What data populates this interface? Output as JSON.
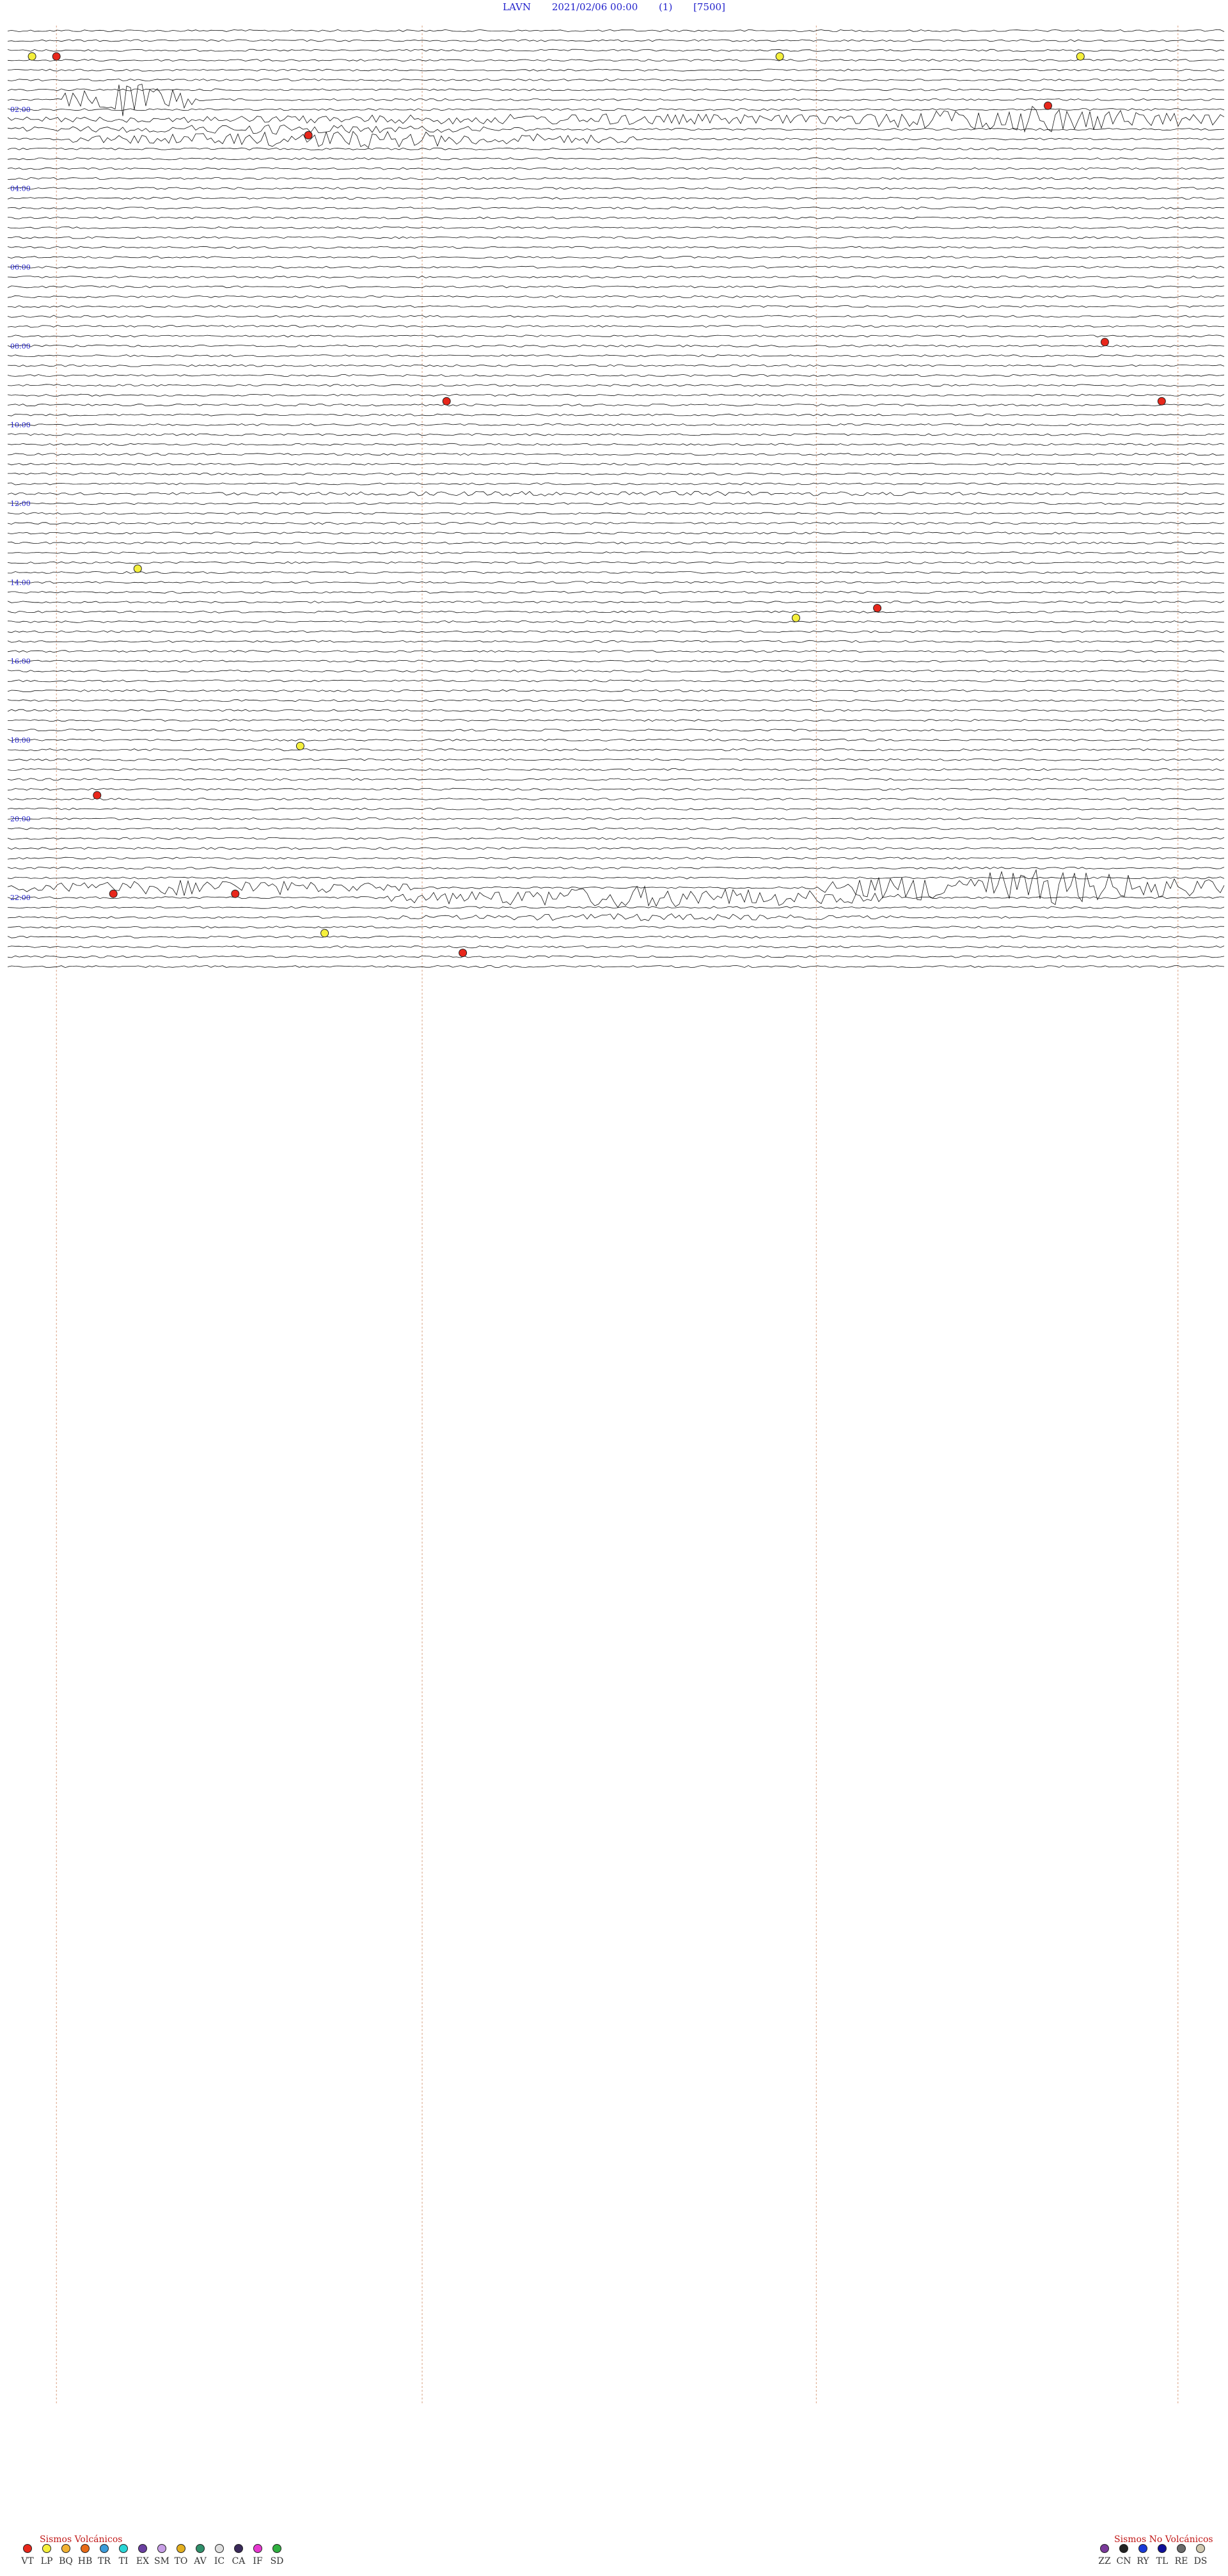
{
  "header": {
    "station": "LAVN",
    "datetime": "2021/02/06 00:00",
    "channel": "(1)",
    "scale": "[7500]"
  },
  "time_labels": [
    "02:00",
    "04:00",
    "06:00",
    "08:00",
    "10:00",
    "12:00",
    "14:00",
    "16:00",
    "18:00",
    "20:00",
    "22:00"
  ],
  "legend": {
    "volcanic_title": "Sismos Volcánicos",
    "volcanic": [
      {
        "code": "VT",
        "color": "#e8271b"
      },
      {
        "code": "LP",
        "color": "#f5f03c"
      },
      {
        "code": "BQ",
        "color": "#f2b232"
      },
      {
        "code": "HB",
        "color": "#e86a16"
      },
      {
        "code": "TR",
        "color": "#3a9bd9"
      },
      {
        "code": "TI",
        "color": "#2ad6d6"
      },
      {
        "code": "EX",
        "color": "#6a3fa0"
      },
      {
        "code": "SM",
        "color": "#c79ee6"
      },
      {
        "code": "TO",
        "color": "#e3b020"
      },
      {
        "code": "AV",
        "color": "#2f8f6a"
      },
      {
        "code": "IC",
        "color": "#e0e0e0"
      },
      {
        "code": "CA",
        "color": "#3a2a5a"
      },
      {
        "code": "IF",
        "color": "#e638d0"
      },
      {
        "code": "SD",
        "color": "#30b040"
      }
    ],
    "nonvolcanic_title": "Sismos No Volcánicos",
    "nonvolcanic": [
      {
        "code": "ZZ",
        "color": "#7a3a9a"
      },
      {
        "code": "CN",
        "color": "#222222"
      },
      {
        "code": "RY",
        "color": "#1a3ad8"
      },
      {
        "code": "TL",
        "color": "#10109a"
      },
      {
        "code": "RE",
        "color": "#6a6a6a"
      },
      {
        "code": "DS",
        "color": "#d0c8b0"
      }
    ]
  },
  "chart_data": {
    "type": "helicorder",
    "station": "LAVN",
    "start": "2021/02/06 00:00",
    "scale": 7500,
    "rows": 96,
    "minutes_per_row": 15,
    "hour_markers": [
      "02:00",
      "04:00",
      "06:00",
      "08:00",
      "10:00",
      "12:00",
      "14:00",
      "16:00",
      "18:00",
      "20:00",
      "22:00"
    ],
    "event_markers": [
      {
        "row": 3,
        "minute": 0.3,
        "type": "LP"
      },
      {
        "row": 3,
        "minute": 0.6,
        "type": "VT"
      },
      {
        "row": 3,
        "minute": 9.5,
        "type": "LP"
      },
      {
        "row": 3,
        "minute": 13.2,
        "type": "LP"
      },
      {
        "row": 8,
        "minute": 12.8,
        "type": "VT"
      },
      {
        "row": 11,
        "minute": 3.7,
        "type": "VT"
      },
      {
        "row": 32,
        "minute": 13.5,
        "type": "VT"
      },
      {
        "row": 38,
        "minute": 5.4,
        "type": "VT"
      },
      {
        "row": 38,
        "minute": 14.2,
        "type": "VT"
      },
      {
        "row": 55,
        "minute": 1.6,
        "type": "LP"
      },
      {
        "row": 59,
        "minute": 10.7,
        "type": "VT"
      },
      {
        "row": 60,
        "minute": 9.7,
        "type": "LP"
      },
      {
        "row": 73,
        "minute": 3.6,
        "type": "LP"
      },
      {
        "row": 78,
        "minute": 1.1,
        "type": "VT"
      },
      {
        "row": 88,
        "minute": 1.3,
        "type": "VT"
      },
      {
        "row": 88,
        "minute": 2.8,
        "type": "VT"
      },
      {
        "row": 92,
        "minute": 3.9,
        "type": "LP"
      },
      {
        "row": 94,
        "minute": 5.6,
        "type": "VT"
      }
    ]
  }
}
